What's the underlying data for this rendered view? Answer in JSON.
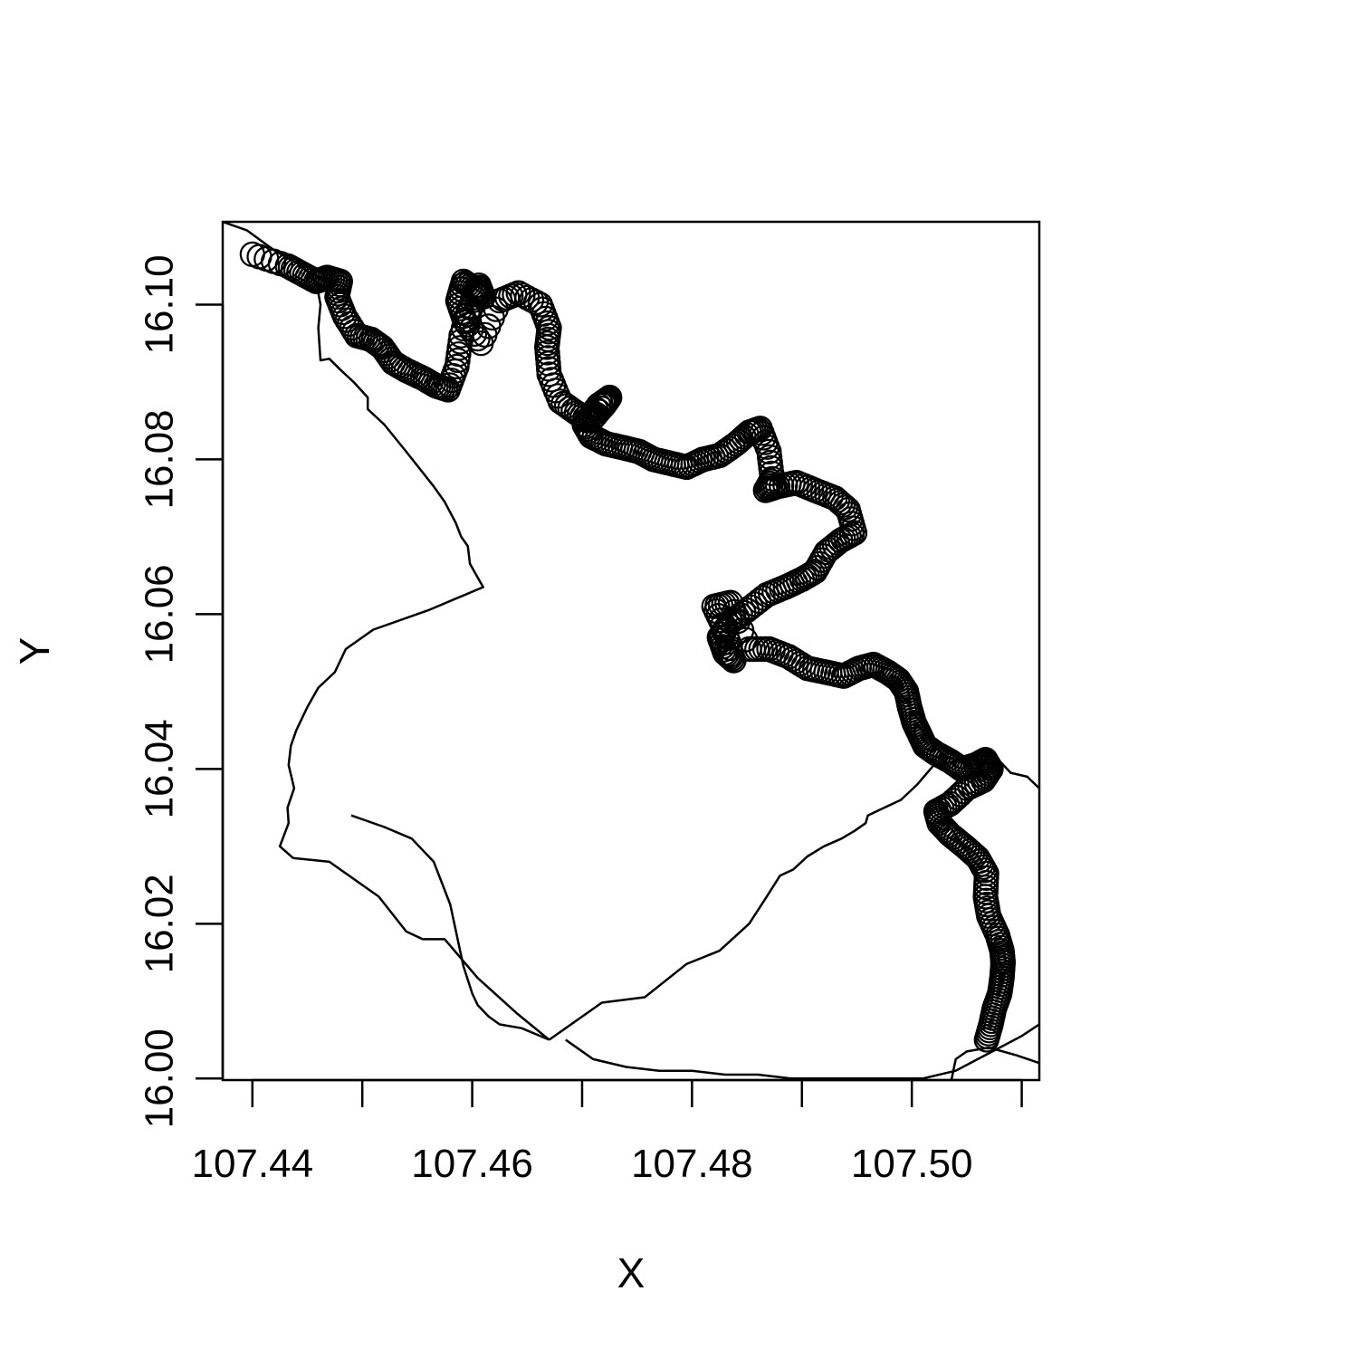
{
  "chart_data": {
    "type": "scatter",
    "title": "",
    "xlabel": "X",
    "ylabel": "Y",
    "xlim": [
      107.4373,
      107.5116
    ],
    "ylim": [
      15.9998,
      16.1107
    ],
    "x_ticks": [
      "107.44",
      "107.46",
      "107.48",
      "107.50"
    ],
    "x_tick_values": [
      107.44,
      107.46,
      107.48,
      107.5
    ],
    "x_minor_ticks": [
      107.45,
      107.47,
      107.49,
      107.51
    ],
    "y_ticks": [
      "16.00",
      "16.02",
      "16.04",
      "16.06",
      "16.08",
      "16.10"
    ],
    "y_tick_values": [
      16.0,
      16.02,
      16.04,
      16.06,
      16.08,
      16.1
    ],
    "grid": false,
    "legend": "none",
    "marker": "open-circle",
    "color": "#000000",
    "series": [
      {
        "kind": "points",
        "x": [
          107.44,
          107.4432,
          107.4445,
          107.4458,
          107.4468,
          107.448,
          107.4477,
          107.4484,
          107.4495,
          107.4508,
          107.4518,
          107.4528,
          107.454,
          107.4555,
          107.4567,
          107.4578,
          107.4586,
          107.459,
          107.46,
          107.4606,
          107.461,
          107.4602,
          107.4592,
          107.4587,
          107.4593,
          107.4608,
          107.4625,
          107.4642,
          107.4662,
          107.467,
          107.4668,
          107.467,
          107.468,
          107.4695,
          107.4708,
          107.472,
          107.4725,
          107.4715,
          107.4702,
          107.4708,
          107.4722,
          107.4738,
          107.4752,
          107.4765,
          107.478,
          107.4795,
          107.481,
          107.4825,
          107.484,
          107.4852,
          107.4862,
          107.487,
          107.4873,
          107.4867,
          107.4878,
          107.4895,
          107.4912,
          107.493,
          107.4942,
          107.4948,
          107.4935,
          107.4922,
          107.4912,
          107.49,
          107.4885,
          107.4868,
          107.485,
          107.4835,
          107.4825,
          107.483,
          107.4838,
          107.483,
          107.482,
          107.4835,
          107.4852,
          107.487,
          107.4888,
          107.4905,
          107.4922,
          107.4938,
          107.4952,
          107.4965,
          107.4978,
          107.4988,
          107.4995,
          107.4998,
          107.5002,
          107.5007,
          107.5012,
          107.5022,
          107.5035,
          107.5045,
          107.5058,
          107.5067,
          107.5072,
          107.5065,
          107.505,
          107.5035,
          107.5022,
          107.5025,
          107.5035,
          107.5048,
          107.506,
          107.5068,
          107.5067,
          107.507,
          107.5078,
          107.5082,
          107.5083,
          107.5082,
          107.508,
          107.5075,
          107.5072,
          107.5068
        ],
        "y": [
          16.1065,
          16.105,
          16.104,
          16.103,
          16.1035,
          16.103,
          16.101,
          16.0985,
          16.096,
          16.0955,
          16.0945,
          16.0925,
          16.0915,
          16.0905,
          16.0895,
          16.089,
          16.092,
          16.096,
          16.1005,
          16.1025,
          16.101,
          16.102,
          16.103,
          16.1005,
          16.098,
          16.095,
          16.1005,
          16.1015,
          16.1,
          16.097,
          16.0945,
          16.091,
          16.0875,
          16.086,
          16.085,
          16.087,
          16.088,
          16.087,
          16.0845,
          16.083,
          16.082,
          16.0815,
          16.081,
          16.08,
          16.0795,
          16.079,
          16.08,
          16.0805,
          16.082,
          16.0835,
          16.084,
          16.081,
          16.0775,
          16.076,
          16.0765,
          16.077,
          16.076,
          16.075,
          16.0735,
          16.0705,
          16.0695,
          16.068,
          16.0655,
          16.0645,
          16.0635,
          16.0625,
          16.0605,
          16.059,
          16.057,
          16.055,
          16.054,
          16.058,
          16.061,
          16.0615,
          16.0555,
          16.0555,
          16.0545,
          16.053,
          16.0525,
          16.052,
          16.053,
          16.0535,
          16.0525,
          16.0515,
          16.05,
          16.048,
          16.046,
          16.0445,
          16.043,
          16.042,
          16.041,
          16.04,
          16.0405,
          16.0412,
          16.04,
          16.0385,
          16.0375,
          16.0355,
          16.0345,
          16.033,
          16.0315,
          16.03,
          16.0285,
          16.0265,
          16.0235,
          16.021,
          16.0185,
          16.0165,
          16.015,
          16.013,
          16.011,
          16.009,
          16.007,
          16.005
        ]
      },
      {
        "kind": "line",
        "x": [
          107.4373,
          107.4395,
          107.442,
          107.4445,
          107.4458,
          107.4462,
          107.446,
          107.4462,
          107.447,
          107.448,
          107.4492,
          107.4505,
          107.4505,
          107.452,
          107.454,
          107.4565,
          107.4575,
          107.4585,
          107.459,
          107.4596,
          107.4598,
          107.4604,
          107.461,
          107.456,
          107.451,
          107.4485,
          107.4475,
          107.446,
          107.445,
          107.444,
          107.4435,
          107.4433,
          107.4438,
          107.4432,
          107.4433,
          107.4425,
          107.4437,
          107.447,
          107.4515,
          107.454,
          107.4555,
          107.4575,
          107.4605,
          107.464,
          107.467
        ],
        "y": [
          16.1107,
          16.1096,
          16.107,
          16.105,
          16.103,
          16.1,
          16.097,
          16.0928,
          16.093,
          16.0916,
          16.09,
          16.088,
          16.0865,
          16.0845,
          16.081,
          16.0765,
          16.0745,
          16.0718,
          16.07,
          16.0688,
          16.0665,
          16.065,
          16.0635,
          16.0605,
          16.058,
          16.0555,
          16.0525,
          16.0505,
          16.048,
          16.045,
          16.043,
          16.0405,
          16.0375,
          16.035,
          16.033,
          16.03,
          16.0285,
          16.028,
          16.0235,
          16.019,
          16.018,
          16.018,
          16.013,
          16.0085,
          16.005
        ]
      },
      {
        "kind": "line",
        "x": [
          107.467,
          107.4645,
          107.4625,
          107.4615,
          107.4605,
          107.46,
          107.4592,
          107.458,
          107.4565,
          107.4545,
          107.452,
          107.449
        ],
        "y": [
          16.005,
          16.0065,
          16.007,
          16.008,
          16.0095,
          16.011,
          16.0145,
          16.0225,
          16.028,
          16.031,
          16.0325,
          16.034
        ]
      },
      {
        "kind": "line",
        "x": [
          107.467,
          107.4718,
          107.4757,
          107.4795,
          107.4825,
          107.4852,
          107.4868,
          107.488,
          107.4892,
          107.4905,
          107.492,
          107.4936,
          107.4948,
          107.4958,
          107.496,
          107.4975,
          107.499,
          107.5005,
          107.502,
          107.504,
          107.506,
          107.508,
          107.509,
          107.5105,
          107.5116
        ],
        "y": [
          16.005,
          16.0098,
          16.0105,
          16.0148,
          16.0165,
          16.02,
          16.0235,
          16.0262,
          16.027,
          16.0287,
          16.03,
          16.031,
          16.032,
          16.033,
          16.034,
          16.035,
          16.036,
          16.038,
          16.0405,
          16.041,
          16.0405,
          16.041,
          16.0395,
          16.039,
          16.0375
        ]
      },
      {
        "kind": "line",
        "x": [
          107.4685,
          107.471,
          107.474,
          107.477,
          107.48,
          107.483,
          107.486,
          107.489,
          107.492,
          107.495,
          107.498,
          107.501,
          107.504,
          107.506,
          107.508,
          107.51,
          107.5116
        ],
        "y": [
          16.005,
          16.0025,
          16.0015,
          16.001,
          16.001,
          16.0005,
          16.0005,
          16.0,
          16.0,
          16.0,
          16.0,
          16.0,
          16.001,
          16.0025,
          16.004,
          16.0055,
          16.007
        ]
      },
      {
        "kind": "line",
        "x": [
          107.5036,
          107.504,
          107.505,
          107.507,
          107.5095,
          107.5116
        ],
        "y": [
          15.9998,
          16.0025,
          16.0035,
          16.004,
          16.003,
          16.002
        ]
      }
    ]
  }
}
